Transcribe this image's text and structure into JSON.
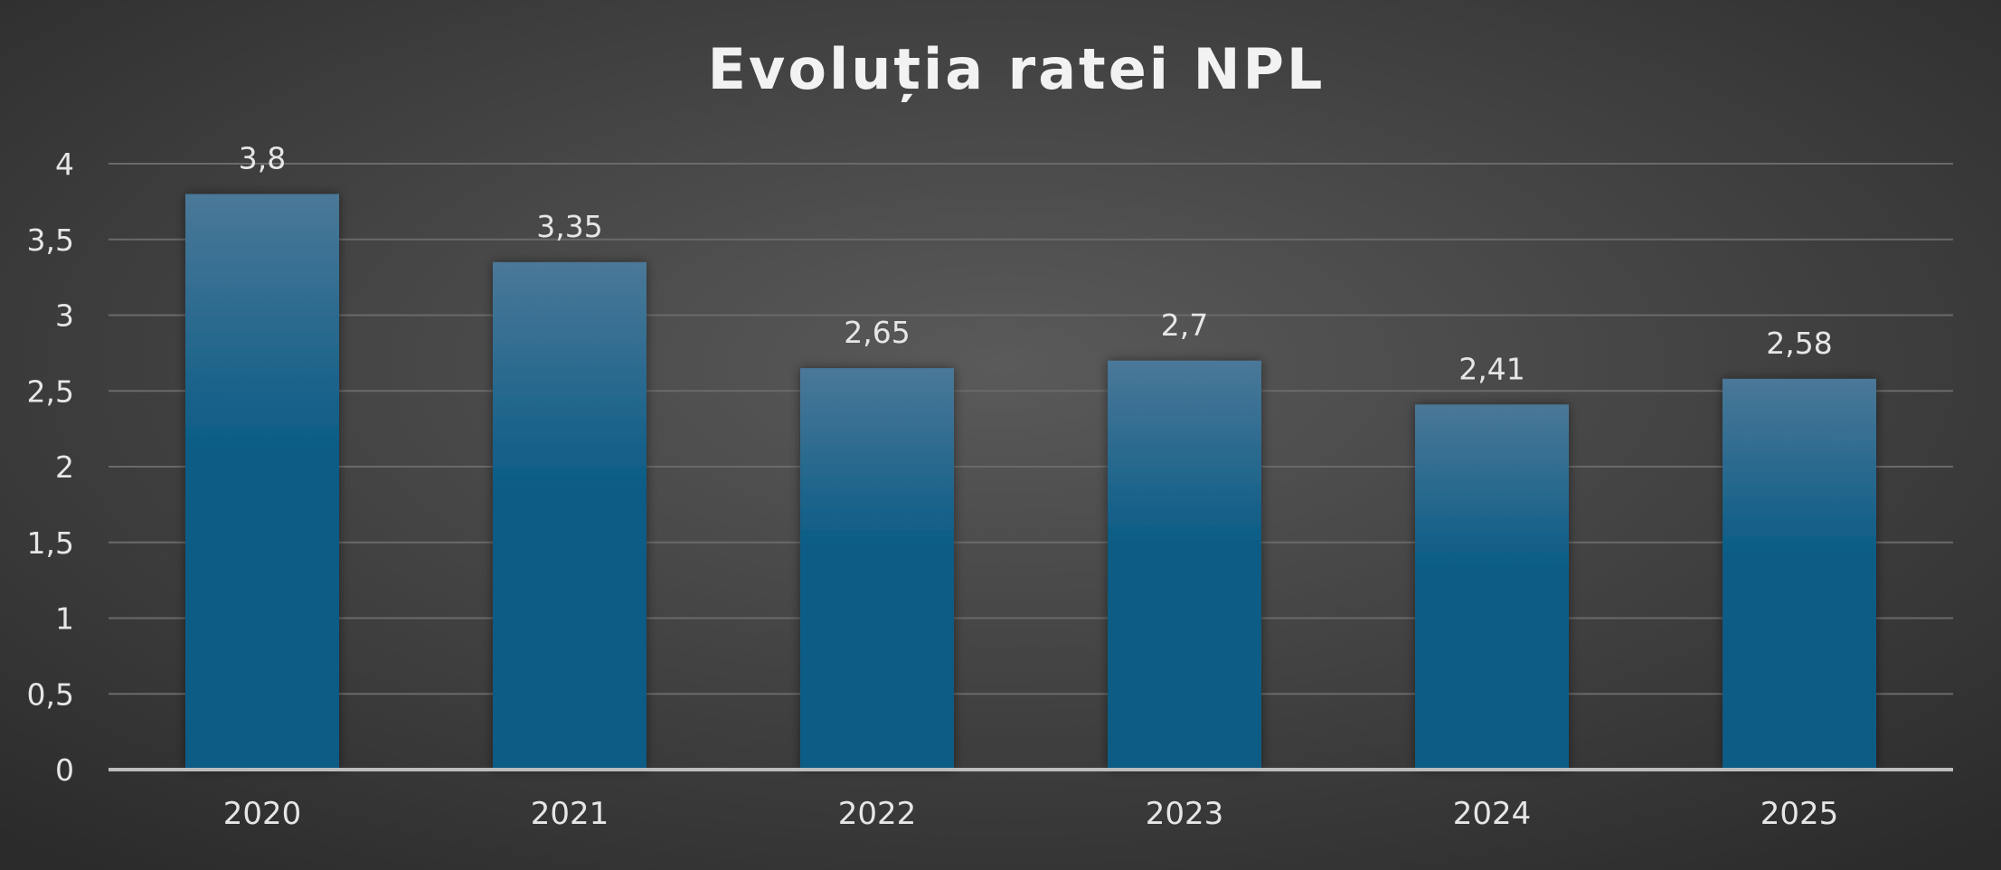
{
  "chart_data": {
    "type": "bar",
    "title": "Evoluția ratei NPL",
    "xlabel": "",
    "ylabel": "",
    "categories": [
      "2020",
      "2021",
      "2022",
      "2023",
      "2024",
      "2025"
    ],
    "values": [
      3.8,
      3.35,
      2.65,
      2.7,
      2.41,
      2.58
    ],
    "value_labels": [
      "3,8",
      "3,35",
      "2,65",
      "2,7",
      "2,41",
      "2,58"
    ],
    "ylim": [
      0,
      4
    ],
    "yticks": [
      0,
      0.5,
      1,
      1.5,
      2,
      2.5,
      3,
      3.5,
      4
    ],
    "ytick_labels": [
      "0",
      "0,5",
      "1",
      "1,5",
      "2",
      "2,5",
      "3",
      "3,5",
      "4"
    ],
    "grid": true,
    "legend": "none",
    "colors": {
      "background_center": "#5a5a5a",
      "background_edge": "#2a2a2a",
      "bar_top": "#4a7898",
      "bar_bottom": "#0b5c86",
      "gridline": "#6a6a6a",
      "axis": "#bdbdbd",
      "text": "#e6e6e6",
      "title": "#f2f2f2"
    }
  }
}
